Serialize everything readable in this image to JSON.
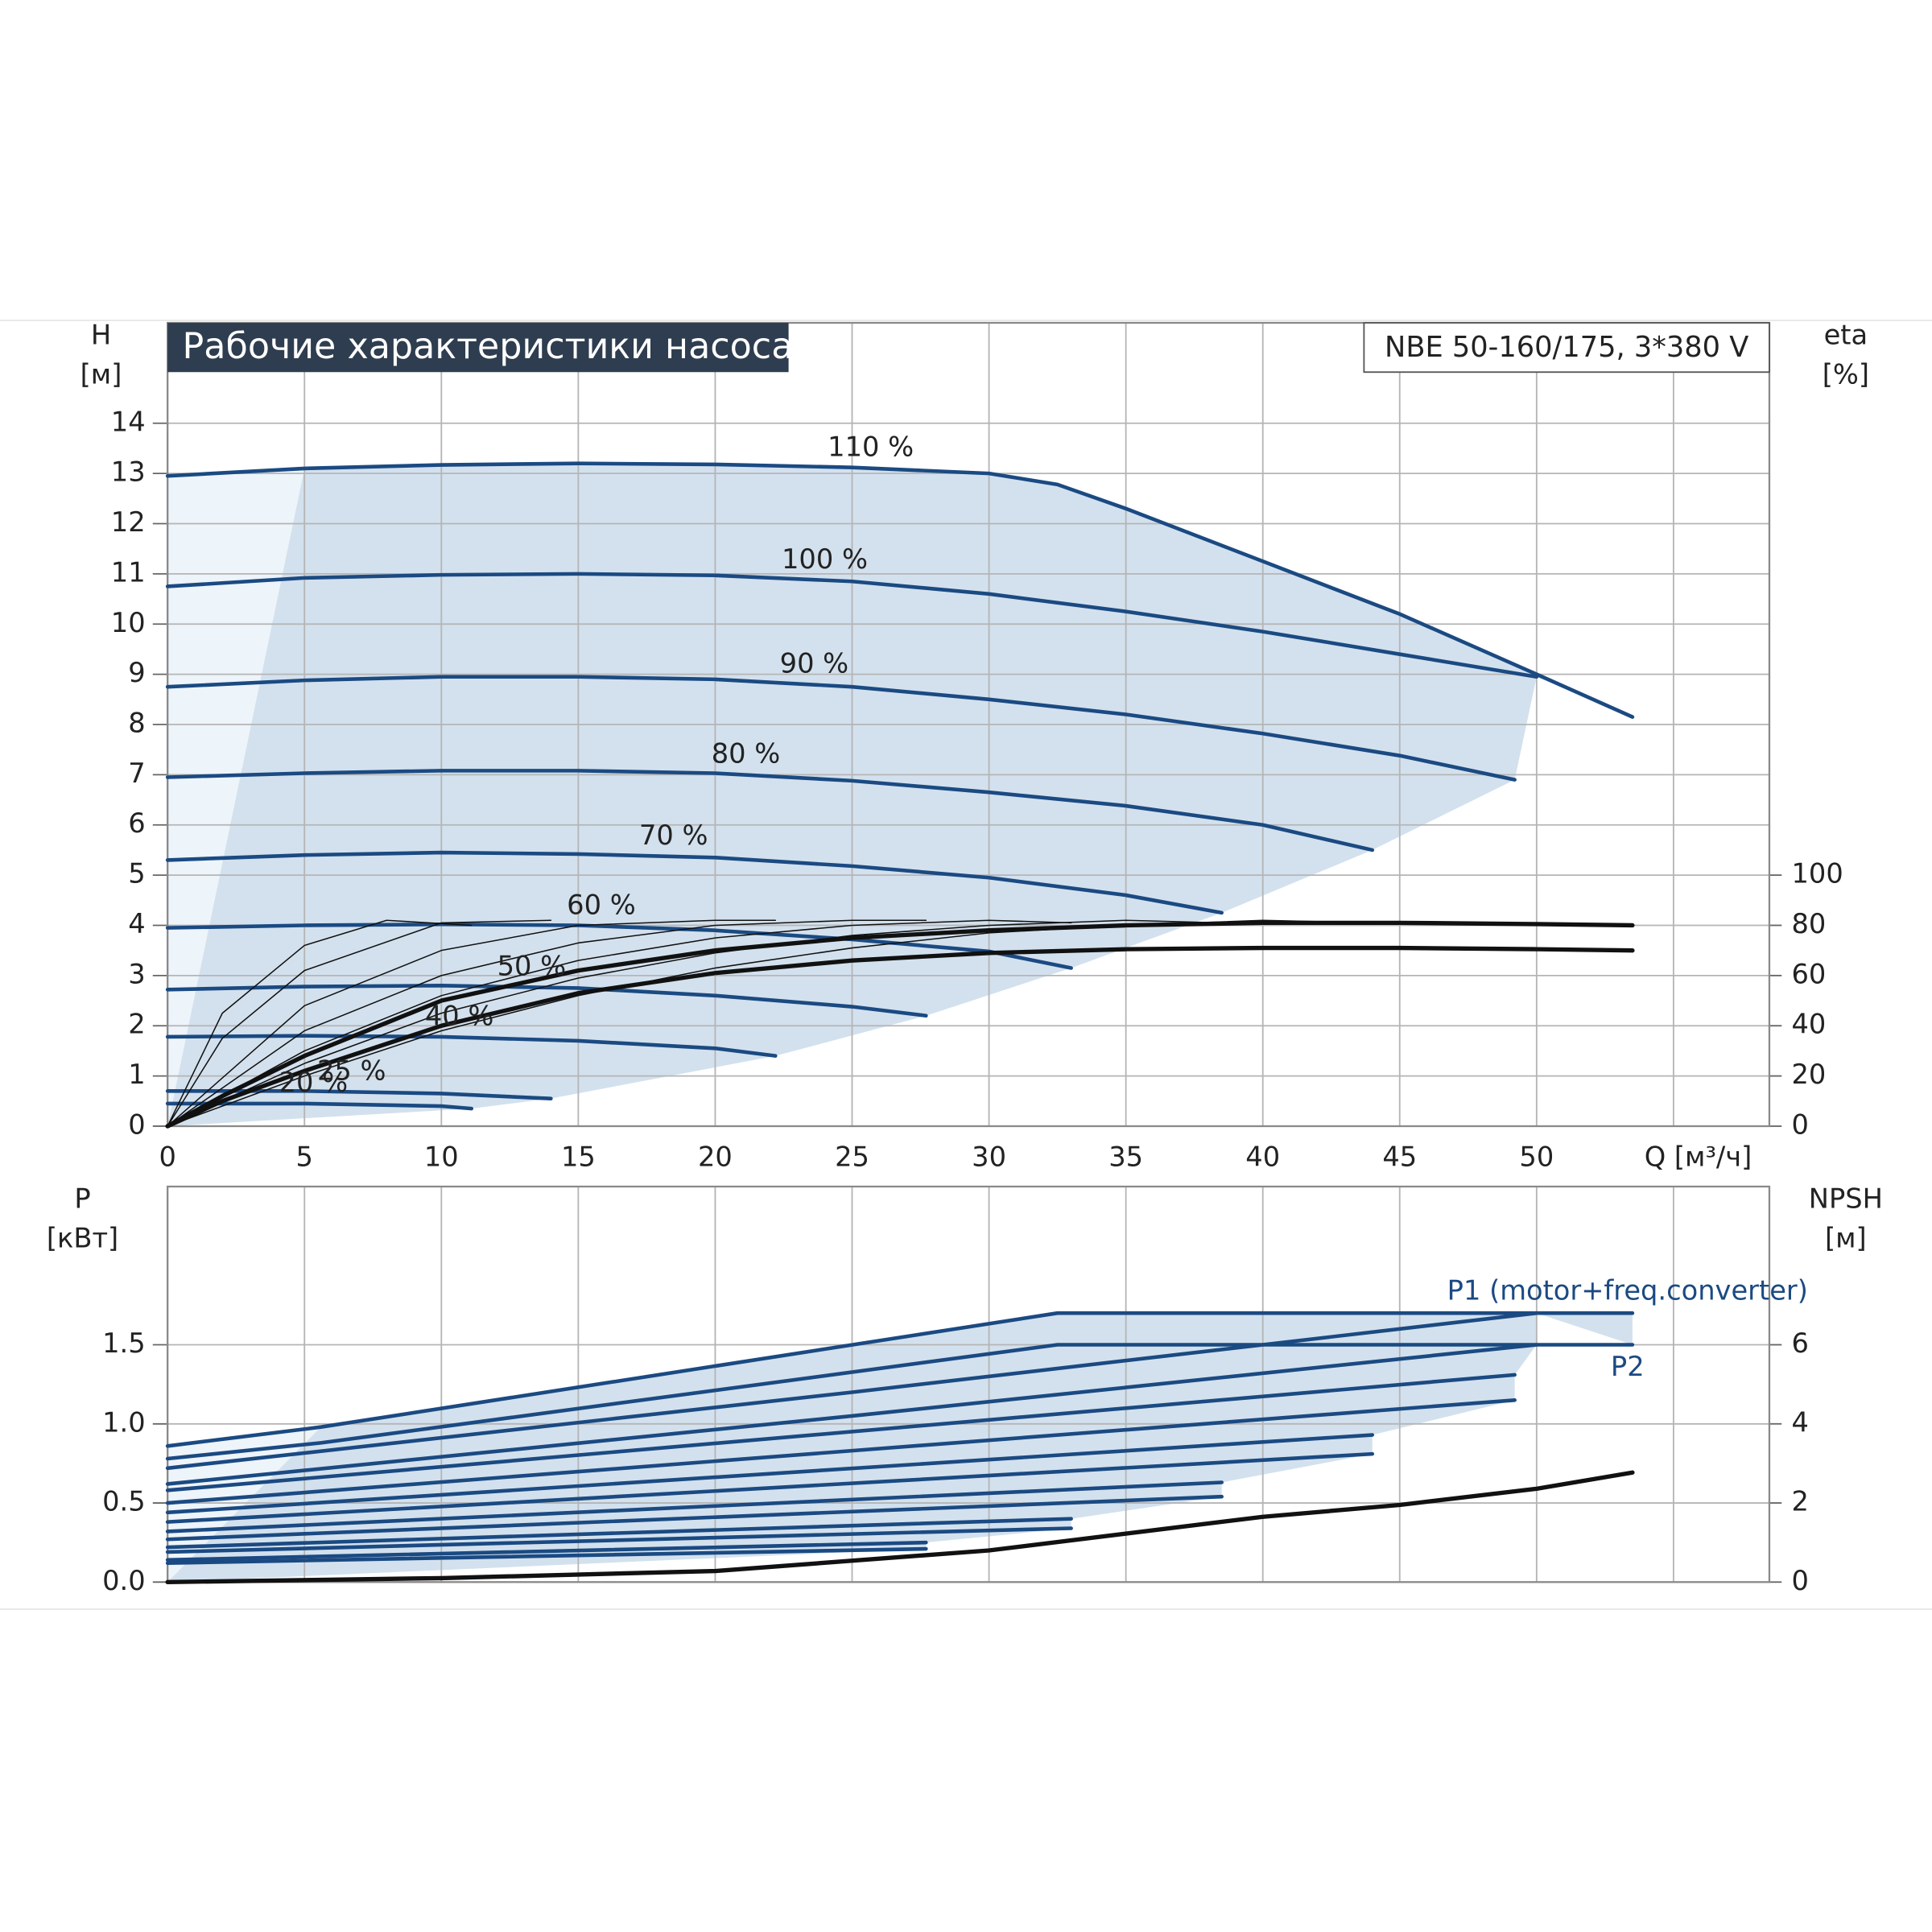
{
  "chart_data": [
    {
      "type": "line",
      "title": "Рабочие характеристики насоса",
      "subtitle": "NBE 50-160/175, 3*380 V",
      "ylabel": "H",
      "ylabel_unit": "[м]",
      "y2label": "eta",
      "y2label_unit": "[%]",
      "xlim": [
        0,
        58.5
      ],
      "xticks": [
        0,
        5,
        10,
        15,
        20,
        25,
        30,
        35,
        40,
        45,
        50,
        {
          "value": 55,
          "label": "Q [м³/ч]"
        }
      ],
      "ylim": [
        0,
        16
      ],
      "yticks": [
        0,
        1,
        2,
        3,
        4,
        5,
        6,
        7,
        8,
        9,
        10,
        11,
        12,
        13,
        14
      ],
      "y2lim": [
        0,
        320
      ],
      "y2ticks": [
        0,
        20,
        40,
        60,
        80,
        100
      ],
      "grid": true,
      "area_color": "#d3e1ee",
      "area_color_light": "#edf4fa",
      "series": [
        {
          "name": "110 %",
          "color": "#1b4a82",
          "x": [
            0,
            5,
            10,
            15,
            20,
            25,
            30,
            32.5,
            35,
            40,
            45,
            50,
            53.5
          ],
          "values": [
            12.95,
            13.1,
            13.17,
            13.2,
            13.18,
            13.12,
            13.0,
            12.78,
            12.3,
            11.25,
            10.2,
            9.0,
            8.15
          ]
        },
        {
          "name": "100 %",
          "color": "#1b4a82",
          "x": [
            0,
            5,
            10,
            15,
            20,
            25,
            30,
            35,
            40,
            45,
            50
          ],
          "values": [
            10.75,
            10.92,
            10.98,
            11.0,
            10.97,
            10.85,
            10.6,
            10.25,
            9.85,
            9.4,
            8.95
          ]
        },
        {
          "name": "90 %",
          "color": "#1b4a82",
          "x": [
            0,
            5,
            10,
            15,
            20,
            25,
            30,
            35,
            40,
            45,
            49.2
          ],
          "values": [
            8.75,
            8.88,
            8.95,
            8.95,
            8.9,
            8.75,
            8.5,
            8.2,
            7.82,
            7.38,
            6.9
          ]
        },
        {
          "name": "80 %",
          "color": "#1b4a82",
          "x": [
            0,
            5,
            10,
            15,
            20,
            25,
            30,
            35,
            40,
            44
          ],
          "values": [
            6.95,
            7.03,
            7.08,
            7.08,
            7.03,
            6.88,
            6.65,
            6.38,
            6.0,
            5.5
          ]
        },
        {
          "name": "70 %",
          "color": "#1b4a82",
          "x": [
            0,
            5,
            10,
            15,
            20,
            25,
            30,
            35,
            38.5
          ],
          "values": [
            5.3,
            5.4,
            5.45,
            5.42,
            5.35,
            5.18,
            4.95,
            4.6,
            4.25
          ]
        },
        {
          "name": "60 %",
          "color": "#1b4a82",
          "x": [
            0,
            5,
            10,
            15,
            20,
            25,
            30,
            33
          ],
          "values": [
            3.95,
            4.0,
            4.02,
            4.0,
            3.9,
            3.72,
            3.48,
            3.15
          ]
        },
        {
          "name": "50 %",
          "color": "#1b4a82",
          "x": [
            0,
            5,
            10,
            15,
            20,
            25,
            27.7
          ],
          "values": [
            2.72,
            2.78,
            2.8,
            2.75,
            2.6,
            2.38,
            2.2
          ]
        },
        {
          "name": "40 %",
          "color": "#1b4a82",
          "x": [
            0,
            5,
            10,
            15,
            20,
            22.2
          ],
          "values": [
            1.78,
            1.8,
            1.78,
            1.7,
            1.55,
            1.4
          ]
        },
        {
          "name": "25 %",
          "color": "#1b4a82",
          "x": [
            0,
            5,
            10,
            14
          ],
          "values": [
            0.7,
            0.7,
            0.65,
            0.55
          ]
        },
        {
          "name": "20 %",
          "color": "#1b4a82",
          "x": [
            0,
            5,
            10,
            11.1
          ],
          "values": [
            0.45,
            0.45,
            0.4,
            0.35
          ]
        },
        {
          "color": "#111111",
          "axis": "y2",
          "style": "thick",
          "x": [
            0,
            2,
            5,
            10,
            15,
            20,
            25,
            30,
            35,
            40,
            45,
            50,
            53.5
          ],
          "values": [
            0,
            12,
            28,
            50,
            62,
            70,
            75,
            78,
            80,
            81,
            81,
            80.5,
            80
          ]
        },
        {
          "color": "#111111",
          "axis": "y2",
          "style": "thick",
          "x": [
            0,
            2,
            5,
            10,
            15,
            20,
            25,
            30,
            35,
            40,
            45,
            50,
            53.5
          ],
          "values": [
            0,
            10,
            22,
            40,
            53,
            61,
            66,
            69,
            70.5,
            71,
            71,
            70.5,
            70
          ]
        },
        {
          "color": "#111111",
          "axis": "y2",
          "style": "thin",
          "x": [
            0,
            2,
            5,
            8,
            11.1
          ],
          "values": [
            0,
            45,
            72,
            82,
            80
          ]
        },
        {
          "color": "#111111",
          "axis": "y2",
          "style": "thin",
          "x": [
            0,
            2,
            5,
            10,
            14
          ],
          "values": [
            0,
            35,
            62,
            81,
            82
          ]
        },
        {
          "color": "#111111",
          "axis": "y2",
          "style": "thin",
          "x": [
            0,
            5,
            10,
            15,
            20,
            22.2
          ],
          "values": [
            0,
            48,
            70,
            80,
            82,
            82
          ]
        },
        {
          "color": "#111111",
          "axis": "y2",
          "style": "thin",
          "x": [
            0,
            5,
            10,
            15,
            20,
            25,
            27.7
          ],
          "values": [
            0,
            38,
            60,
            73,
            80,
            82,
            82
          ]
        },
        {
          "color": "#111111",
          "axis": "y2",
          "style": "thin",
          "x": [
            0,
            5,
            10,
            15,
            20,
            25,
            30,
            33
          ],
          "values": [
            0,
            30,
            52,
            66,
            75,
            80,
            82,
            81
          ]
        },
        {
          "color": "#111111",
          "axis": "y2",
          "style": "thin",
          "x": [
            0,
            5,
            10,
            15,
            20,
            25,
            30,
            35,
            38.5
          ],
          "values": [
            0,
            25,
            45,
            59,
            69,
            76,
            80,
            82,
            81
          ]
        },
        {
          "color": "#111111",
          "axis": "y2",
          "style": "thin",
          "x": [
            0,
            5,
            10,
            15,
            20,
            25,
            30,
            35,
            40,
            44
          ],
          "values": [
            0,
            20,
            38,
            52,
            63,
            71,
            77,
            80,
            82,
            81
          ]
        }
      ]
    },
    {
      "type": "line",
      "ylabel": "P",
      "ylabel_unit": "[кВт]",
      "y2label": "NPSH",
      "y2label_unit": "[м]",
      "xlim": [
        0,
        58.5
      ],
      "ylim": [
        0,
        2.5
      ],
      "yticks": [
        {
          "value": 0,
          "label": "0.0"
        },
        0.5,
        {
          "value": 1,
          "label": "1.0"
        },
        1.5
      ],
      "y2lim": [
        0,
        10
      ],
      "y2ticks": [
        0,
        2,
        4,
        6
      ],
      "grid": true,
      "area_color": "#d3e1ee",
      "area_color_light": "#edf4fa",
      "series": [
        {
          "name": "P1 (motor+freq.converter)",
          "color": "#1b4a82",
          "x": [
            0,
            5.6,
            32.5,
            53.5
          ],
          "values": [
            0.86,
            0.98,
            1.7,
            1.7
          ]
        },
        {
          "name": "P2",
          "color": "#1b4a82",
          "x": [
            0,
            5.6,
            32.5,
            53.5
          ],
          "values": [
            0.78,
            0.88,
            1.5,
            1.5
          ]
        },
        {
          "color": "#1b4a82",
          "x": [
            0,
            25,
            50
          ],
          "values": [
            0.72,
            1.2,
            1.7
          ]
        },
        {
          "color": "#1b4a82",
          "x": [
            0,
            25,
            50
          ],
          "values": [
            0.62,
            1.05,
            1.5
          ]
        },
        {
          "color": "#1b4a82",
          "x": [
            0,
            49.2
          ],
          "values": [
            0.58,
            1.31
          ]
        },
        {
          "color": "#1b4a82",
          "x": [
            0,
            49.2
          ],
          "values": [
            0.5,
            1.15
          ]
        },
        {
          "color": "#1b4a82",
          "x": [
            0,
            44
          ],
          "values": [
            0.44,
            0.93
          ]
        },
        {
          "color": "#1b4a82",
          "x": [
            0,
            44
          ],
          "values": [
            0.38,
            0.81
          ]
        },
        {
          "color": "#1b4a82",
          "x": [
            0,
            38.5
          ],
          "values": [
            0.32,
            0.63
          ]
        },
        {
          "color": "#1b4a82",
          "x": [
            0,
            38.5
          ],
          "values": [
            0.27,
            0.54
          ]
        },
        {
          "color": "#1b4a82",
          "x": [
            0,
            33
          ],
          "values": [
            0.22,
            0.4
          ]
        },
        {
          "color": "#1b4a82",
          "x": [
            0,
            33
          ],
          "values": [
            0.19,
            0.34
          ]
        },
        {
          "color": "#1b4a82",
          "x": [
            0,
            27.7
          ],
          "values": [
            0.14,
            0.25
          ]
        },
        {
          "color": "#1b4a82",
          "x": [
            0,
            27.7
          ],
          "values": [
            0.12,
            0.21
          ]
        },
        {
          "color": "#111111",
          "axis": "y2",
          "style": "thick",
          "x": [
            0,
            10,
            20,
            30,
            40,
            45,
            50,
            53.5
          ],
          "values": [
            0,
            0.1,
            0.28,
            0.8,
            1.65,
            1.95,
            2.36,
            2.77
          ]
        }
      ]
    }
  ]
}
